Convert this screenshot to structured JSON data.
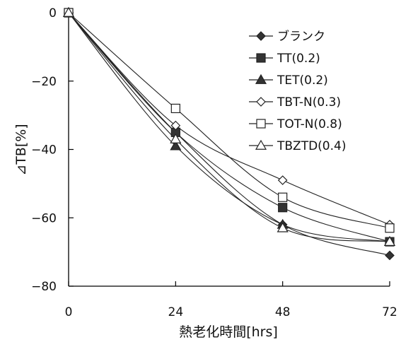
{
  "chart_data": {
    "type": "line",
    "title": "",
    "xlabel": "熱老化時間[hrs]",
    "ylabel": "⊿TB[%]",
    "x": [
      0,
      24,
      48,
      72
    ],
    "xticks": [
      "0",
      "24",
      "48",
      "72"
    ],
    "yticks": [
      "0",
      "-20",
      "-40",
      "-60",
      "-80"
    ],
    "xlim": [
      0,
      72
    ],
    "ylim": [
      -80,
      0
    ],
    "grid": false,
    "legend": "top-right",
    "series": [
      {
        "name": "ブランク",
        "values": [
          0,
          -35,
          -62,
          -71
        ],
        "marker": "diamond",
        "fill": "filled"
      },
      {
        "name": "TT(0.2)",
        "values": [
          0,
          -35,
          -57,
          -67
        ],
        "marker": "square",
        "fill": "filled"
      },
      {
        "name": "TET(0.2)",
        "values": [
          0,
          -39,
          -62,
          -67
        ],
        "marker": "triangle",
        "fill": "filled"
      },
      {
        "name": "TBT-N(0.3)",
        "values": [
          0,
          -33,
          -49,
          -62
        ],
        "marker": "diamond",
        "fill": "open"
      },
      {
        "name": "TOT-N(0.8)",
        "values": [
          0,
          -28,
          -54,
          -63
        ],
        "marker": "square",
        "fill": "open"
      },
      {
        "name": "TBZTD(0.4)",
        "values": [
          0,
          -37,
          -63,
          -67
        ],
        "marker": "triangle",
        "fill": "open"
      }
    ]
  }
}
